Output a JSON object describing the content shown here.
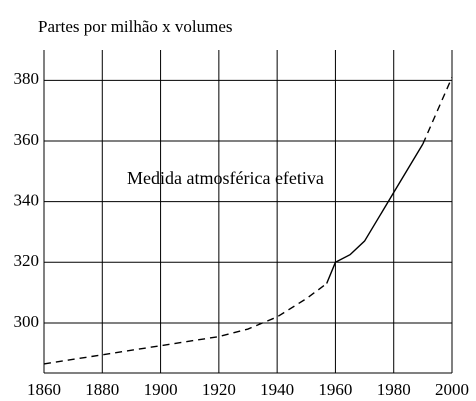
{
  "chart_data": {
    "type": "line",
    "title": "Partes por milhão x volumes",
    "annotation": "Medida atmosférica efetiva",
    "x": [],
    "series": [
      {
        "color": "#000000",
        "dashed": true,
        "x": [
          1860,
          1880,
          1900,
          1920,
          1930,
          1940,
          1950,
          1957
        ],
        "values": [
          286.5,
          289.5,
          292.5,
          295.5,
          298,
          302,
          308,
          313
        ]
      },
      {
        "color": "#000000",
        "dashed": false,
        "x": [
          1957,
          1960,
          1965,
          1970,
          1975,
          1980,
          1985,
          1990
        ],
        "values": [
          313,
          320,
          322.5,
          327,
          335,
          343,
          351,
          359
        ]
      },
      {
        "color": "#000000",
        "dashed": true,
        "x": [
          1990,
          2000
        ],
        "values": [
          359,
          381
        ]
      }
    ],
    "xlim": [
      1860,
      2000
    ],
    "xticks": [
      1860,
      1880,
      1900,
      1920,
      1940,
      1960,
      1980,
      2000
    ],
    "ylim": [
      283.5,
      390
    ],
    "yticks": [
      300,
      320,
      340,
      360,
      380
    ],
    "grid": true
  }
}
